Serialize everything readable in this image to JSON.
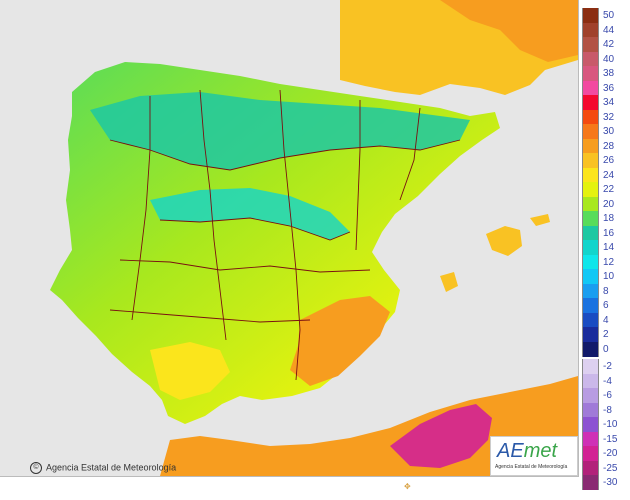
{
  "map": {
    "credit": "Agencia Estatal de Meteorología",
    "logo_text": "AEmet",
    "logo_subtitle": "Agencia Estatal de Meteorología",
    "background_color": "#e6e6e6"
  },
  "legend": {
    "positive": [
      {
        "label": "50",
        "color": "#8b2e12"
      },
      {
        "label": "44",
        "color": "#a0412b"
      },
      {
        "label": "42",
        "color": "#b25244"
      },
      {
        "label": "40",
        "color": "#c85a6a"
      },
      {
        "label": "38",
        "color": "#d8577f"
      },
      {
        "label": "36",
        "color": "#f24aa0"
      },
      {
        "label": "34",
        "color": "#f4082e"
      },
      {
        "label": "32",
        "color": "#f44a10"
      },
      {
        "label": "30",
        "color": "#f6781a"
      },
      {
        "label": "28",
        "color": "#f79d1f"
      },
      {
        "label": "26",
        "color": "#f9c223"
      },
      {
        "label": "24",
        "color": "#fbe51c"
      },
      {
        "label": "22",
        "color": "#e4f20f"
      },
      {
        "label": "20",
        "color": "#a8e81e"
      },
      {
        "label": "18",
        "color": "#58dc5a"
      },
      {
        "label": "16",
        "color": "#1dc8a2"
      },
      {
        "label": "14",
        "color": "#12d5cc"
      },
      {
        "label": "12",
        "color": "#0fe6ea"
      },
      {
        "label": "10",
        "color": "#12c8f5"
      },
      {
        "label": "8",
        "color": "#1a9ef0"
      },
      {
        "label": "6",
        "color": "#1a72e0"
      },
      {
        "label": "4",
        "color": "#1a4cc2"
      },
      {
        "label": "2",
        "color": "#1a2c9c"
      },
      {
        "label": "0",
        "color": "#121a6a"
      }
    ],
    "negative": [
      {
        "label": "-2",
        "color": "#ddd0f0"
      },
      {
        "label": "-4",
        "color": "#cbb8ea"
      },
      {
        "label": "-6",
        "color": "#b89ce2"
      },
      {
        "label": "-8",
        "color": "#a07ad8"
      },
      {
        "label": "-10",
        "color": "#8c52d2"
      },
      {
        "label": "-15",
        "color": "#cf30b6"
      },
      {
        "label": "-20",
        "color": "#d22294"
      },
      {
        "label": "-25",
        "color": "#b2227a"
      },
      {
        "label": "-30",
        "color": "#8a2a72"
      }
    ]
  }
}
